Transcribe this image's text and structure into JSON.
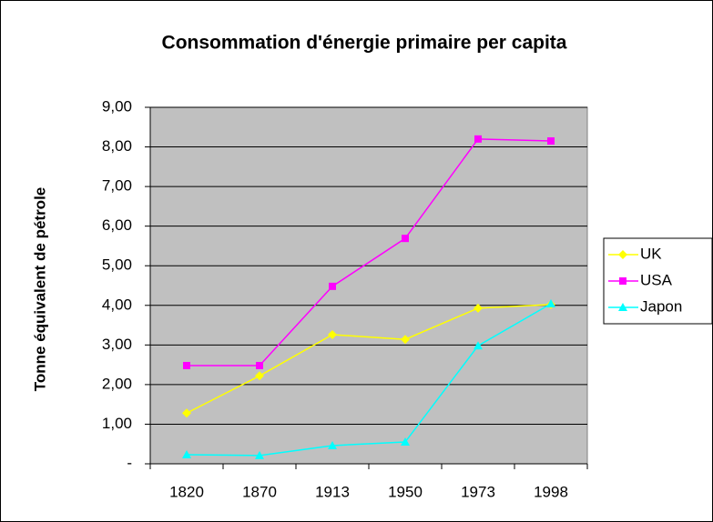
{
  "chart_data": {
    "type": "line",
    "title": "Consommation d'énergie primaire per capita",
    "y_label": "Tonne équivalent de pétrole",
    "categories": [
      "1820",
      "1870",
      "1913",
      "1950",
      "1973",
      "1998"
    ],
    "series": [
      {
        "name": "UK",
        "color": "#ffff00",
        "marker": "diamond",
        "values": [
          1.28,
          2.22,
          3.26,
          3.14,
          3.93,
          4.02
        ]
      },
      {
        "name": "USA",
        "color": "#ff00ff",
        "marker": "square",
        "values": [
          2.48,
          2.48,
          4.48,
          5.69,
          8.2,
          8.15
        ]
      },
      {
        "name": "Japon",
        "color": "#00ffff",
        "marker": "triangle",
        "values": [
          0.23,
          0.21,
          0.46,
          0.55,
          2.98,
          4.04
        ]
      }
    ],
    "ylim": [
      0,
      9
    ],
    "yticks": [
      {
        "value": 0,
        "label": "-"
      },
      {
        "value": 1,
        "label": "1,00"
      },
      {
        "value": 2,
        "label": "2,00"
      },
      {
        "value": 3,
        "label": "3,00"
      },
      {
        "value": 4,
        "label": "4,00"
      },
      {
        "value": 5,
        "label": "5,00"
      },
      {
        "value": 6,
        "label": "6,00"
      },
      {
        "value": 7,
        "label": "7,00"
      },
      {
        "value": 8,
        "label": "8,00"
      },
      {
        "value": 9,
        "label": "9,00"
      }
    ],
    "grid": true,
    "plot_background": "#c0c0c0",
    "legend": "right"
  }
}
